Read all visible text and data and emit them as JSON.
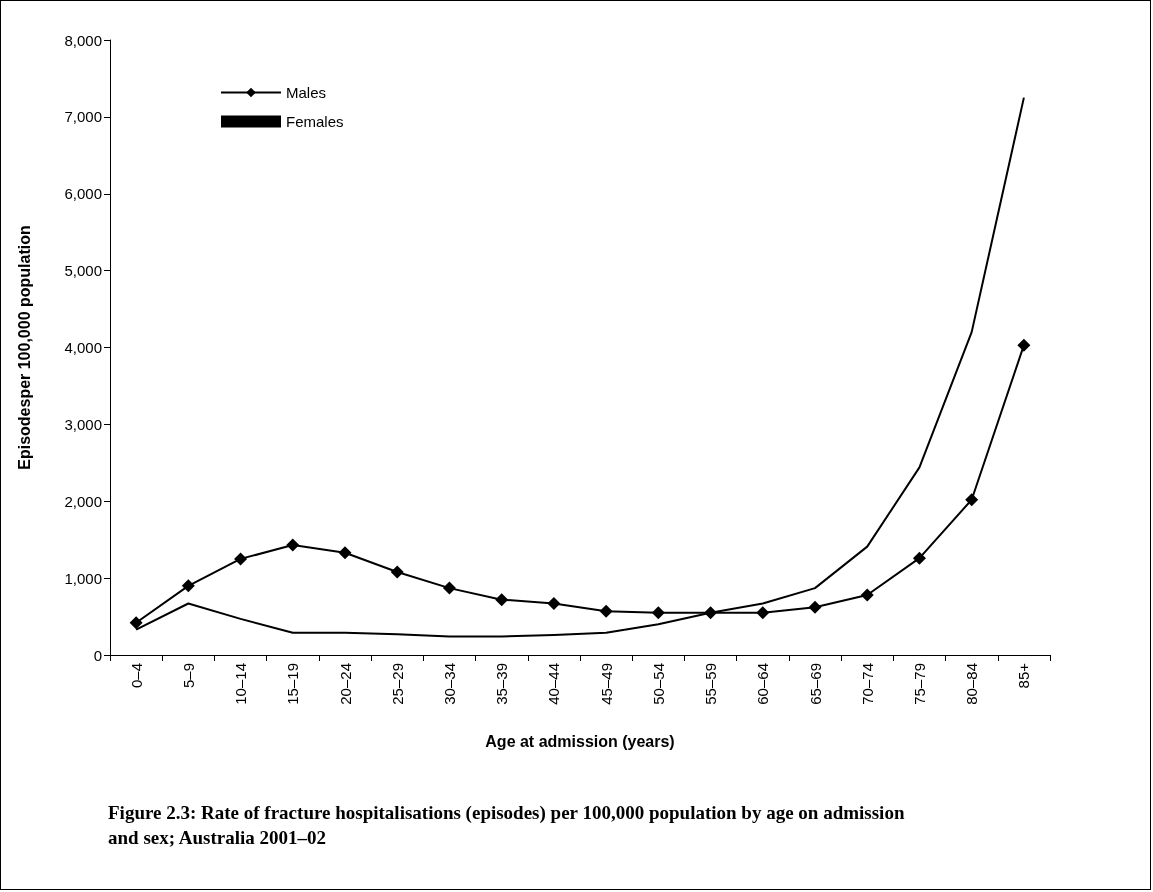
{
  "chart_data": {
    "type": "line",
    "title": "Figure 2.3: Rate of fracture hospitalisations (episodes) per 100,000 population by age on admission and sex; Australia 2001–02",
    "xlabel": "Age at admission (years)",
    "ylabel": "Episodesper 100,000 population",
    "categories": [
      "0–4",
      "5–9",
      "10–14",
      "15–19",
      "20–24",
      "25–29",
      "30–34",
      "35–39",
      "40–44",
      "45–49",
      "50–54",
      "55–59",
      "60–64",
      "65–69",
      "70–74",
      "75–79",
      "80–84",
      "85+"
    ],
    "series": [
      {
        "name": "Males",
        "color": "#000000",
        "marker": "diamond",
        "values": [
          420,
          900,
          1250,
          1430,
          1330,
          1080,
          870,
          720,
          670,
          570,
          550,
          550,
          550,
          620,
          780,
          1260,
          2020,
          4030
        ]
      },
      {
        "name": "Females",
        "color": "#000000",
        "marker": "none",
        "values": [
          330,
          670,
          470,
          290,
          290,
          270,
          240,
          240,
          260,
          290,
          400,
          550,
          670,
          870,
          1410,
          2440,
          4200,
          7250
        ]
      }
    ],
    "ylim": [
      0,
      8000
    ],
    "yticks": [
      0,
      {
        "value": 1000,
        "label": "1,000"
      },
      {
        "value": 2000,
        "label": "2,000"
      },
      {
        "value": 3000,
        "label": "3,000"
      },
      {
        "value": 4000,
        "label": "4,000"
      },
      {
        "value": 5000,
        "label": "5,000"
      },
      {
        "value": 6000,
        "label": "6,000"
      },
      {
        "value": 7000,
        "label": "7,000"
      },
      {
        "value": 8000,
        "label": "8,000"
      }
    ],
    "grid": false,
    "legend": "top left",
    "line_style": "solid"
  }
}
